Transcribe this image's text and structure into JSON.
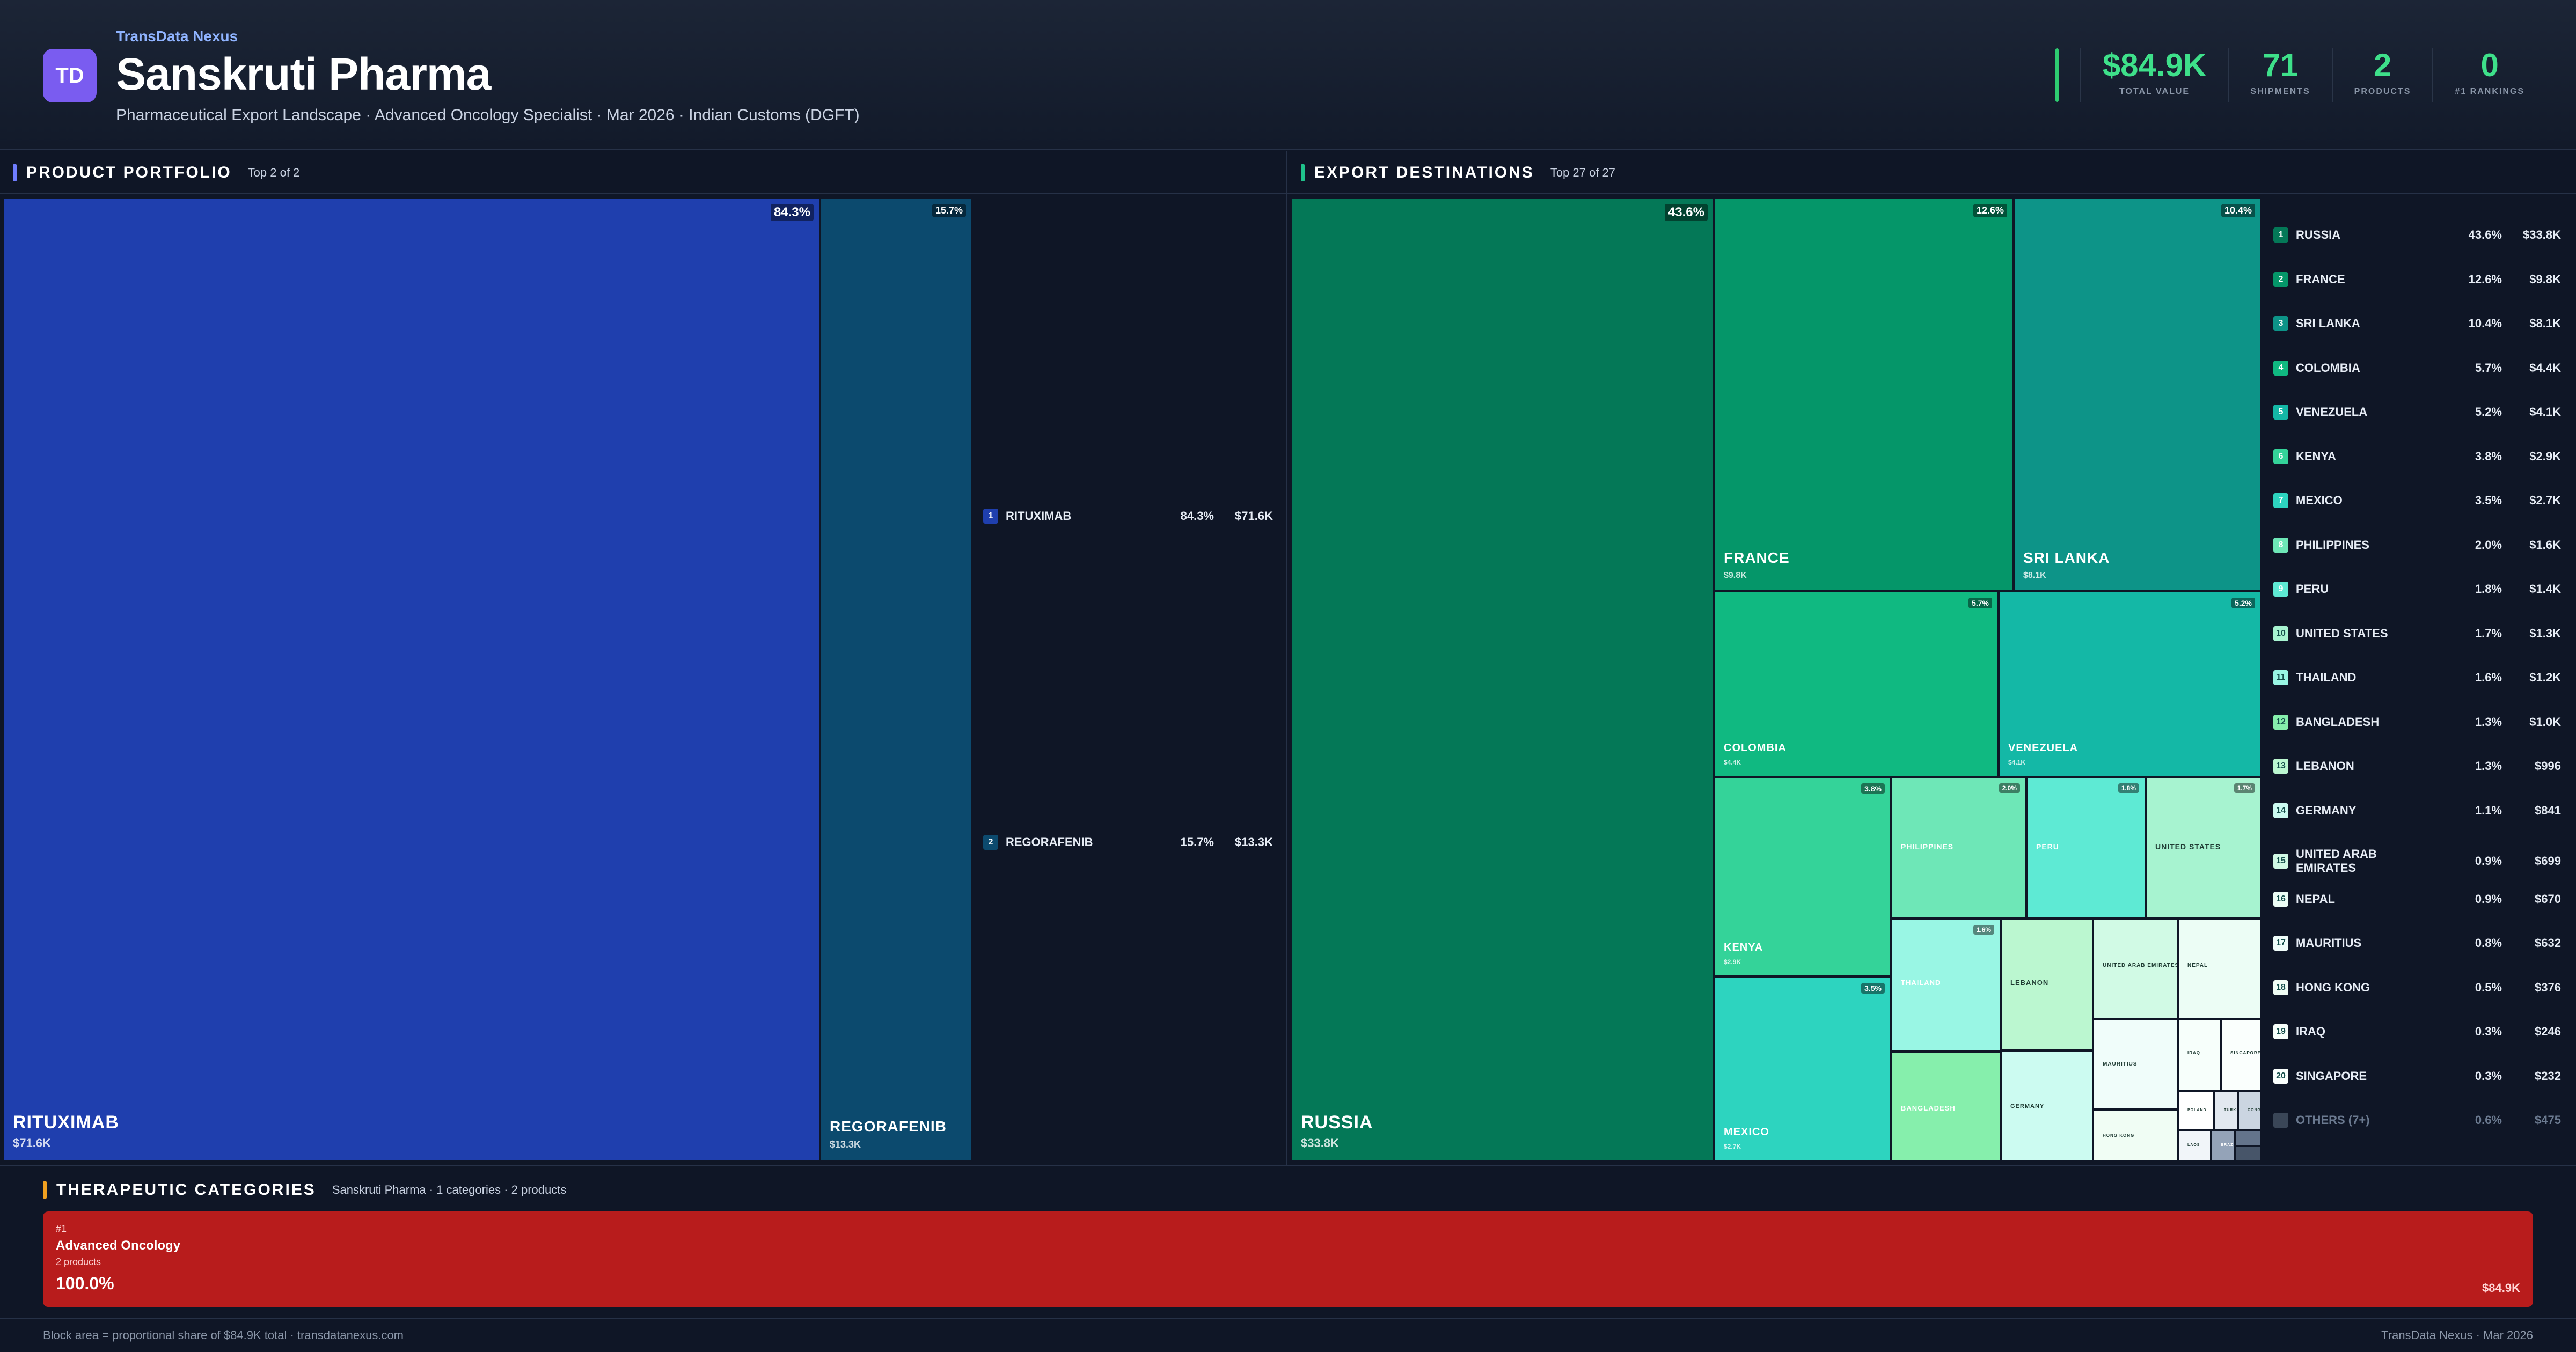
{
  "header": {
    "logo_text": "TD",
    "brand": "TransData Nexus",
    "title": "Sanskruti Pharma",
    "subtitle": "Pharmaceutical Export Landscape · Advanced Oncology Specialist · Mar 2026 · Indian Customs (DGFT)"
  },
  "kpis": [
    {
      "value": "$84.9K",
      "label": "TOTAL VALUE"
    },
    {
      "value": "71",
      "label": "SHIPMENTS"
    },
    {
      "value": "2",
      "label": "PRODUCTS"
    },
    {
      "value": "0",
      "label": "#1 RANKINGS"
    }
  ],
  "colors": {
    "accent_green": "#3ee08a",
    "product_blue": "#1f3fae",
    "product_teal": "#0c4a6e",
    "category_red": "#b81c1c"
  },
  "portfolio": {
    "title": "PRODUCT PORTFOLIO",
    "subtitle": "Top 2 of 2"
  },
  "destinations": {
    "title": "EXPORT DESTINATIONS",
    "subtitle": "Top 27 of 27"
  },
  "chart_data": [
    {
      "type": "treemap",
      "title": "PRODUCT PORTFOLIO",
      "items": [
        {
          "rank": "1",
          "name": "RITUXIMAB",
          "pct": "84.3%",
          "value_label": "$71.6K",
          "value": 71.6,
          "color": "#1f3fae"
        },
        {
          "rank": "2",
          "name": "REGORAFENIB",
          "pct": "15.7%",
          "value_label": "$13.3K",
          "value": 13.3,
          "color": "#0c4a6e"
        }
      ]
    },
    {
      "type": "treemap",
      "title": "EXPORT DESTINATIONS",
      "items": [
        {
          "rank": "1",
          "name": "RUSSIA",
          "pct": "43.6%",
          "value_label": "$33.8K",
          "value": 33800,
          "color": "#047857"
        },
        {
          "rank": "2",
          "name": "FRANCE",
          "pct": "12.6%",
          "value_label": "$9.8K",
          "value": 9800,
          "color": "#059669"
        },
        {
          "rank": "3",
          "name": "SRI LANKA",
          "pct": "10.4%",
          "value_label": "$8.1K",
          "value": 8100,
          "color": "#0d9488"
        },
        {
          "rank": "4",
          "name": "COLOMBIA",
          "pct": "5.7%",
          "value_label": "$4.4K",
          "value": 4400,
          "color": "#10b981"
        },
        {
          "rank": "5",
          "name": "VENEZUELA",
          "pct": "5.2%",
          "value_label": "$4.1K",
          "value": 4100,
          "color": "#14b8a6"
        },
        {
          "rank": "6",
          "name": "KENYA",
          "pct": "3.8%",
          "value_label": "$2.9K",
          "value": 2900,
          "color": "#34d399"
        },
        {
          "rank": "7",
          "name": "MEXICO",
          "pct": "3.5%",
          "value_label": "$2.7K",
          "value": 2700,
          "color": "#2dd4bf"
        },
        {
          "rank": "8",
          "name": "PHILIPPINES",
          "pct": "2.0%",
          "value_label": "$1.6K",
          "value": 1600,
          "color": "#6ee7b7"
        },
        {
          "rank": "9",
          "name": "PERU",
          "pct": "1.8%",
          "value_label": "$1.4K",
          "value": 1400,
          "color": "#5eead4"
        },
        {
          "rank": "10",
          "name": "UNITED STATES",
          "pct": "1.7%",
          "value_label": "$1.3K",
          "value": 1300,
          "color": "#a7f3d0"
        },
        {
          "rank": "11",
          "name": "THAILAND",
          "pct": "1.6%",
          "value_label": "$1.2K",
          "value": 1200,
          "color": "#99f6e4"
        },
        {
          "rank": "12",
          "name": "BANGLADESH",
          "pct": "1.3%",
          "value_label": "$1.0K",
          "value": 1000,
          "color": "#86efac"
        },
        {
          "rank": "13",
          "name": "LEBANON",
          "pct": "1.3%",
          "value_label": "$996",
          "value": 996,
          "color": "#bbf7d0"
        },
        {
          "rank": "14",
          "name": "GERMANY",
          "pct": "1.1%",
          "value_label": "$841",
          "value": 841,
          "color": "#ccfbf1"
        },
        {
          "rank": "15",
          "name": "UNITED ARAB EMIRATES",
          "pct": "0.9%",
          "value_label": "$699",
          "value": 699,
          "color": "#d1fae5"
        },
        {
          "rank": "16",
          "name": "NEPAL",
          "pct": "0.9%",
          "value_label": "$670",
          "value": 670,
          "color": "#ecfdf5"
        },
        {
          "rank": "17",
          "name": "MAURITIUS",
          "pct": "0.8%",
          "value_label": "$632",
          "value": 632,
          "color": "#f0fdfa"
        },
        {
          "rank": "18",
          "name": "HONG KONG",
          "pct": "0.5%",
          "value_label": "$376",
          "value": 376,
          "color": "#f0fdf4"
        },
        {
          "rank": "19",
          "name": "IRAQ",
          "pct": "0.3%",
          "value_label": "$246",
          "value": 246,
          "color": "#f7fffb"
        },
        {
          "rank": "20",
          "name": "SINGAPORE",
          "pct": "0.3%",
          "value_label": "$232",
          "value": 232,
          "color": "#fafffd"
        }
      ],
      "minor_tiles": [
        {
          "name": "POLAND",
          "color": "#ffffff"
        },
        {
          "name": "TURKEY",
          "color": "#e2e8f0"
        },
        {
          "name": "CONGO",
          "color": "#cbd5e1"
        },
        {
          "name": "LAOS",
          "color": "#f1f5f9"
        },
        {
          "name": "BRAZIL",
          "color": "#94a3b8"
        },
        {
          "name": "",
          "color": "#64748b"
        },
        {
          "name": "",
          "color": "#475569"
        }
      ],
      "others": {
        "name": "OTHERS (7+)",
        "pct": "0.6%",
        "value_label": "$475"
      }
    }
  ],
  "categories": {
    "title": "THERAPEUTIC CATEGORIES",
    "subtitle": "Sanskruti Pharma · 1 categories · 2 products",
    "items": [
      {
        "rank": "#1",
        "name": "Advanced Oncology",
        "count": "2 products",
        "pct": "100.0%",
        "value": "$84.9K"
      }
    ]
  },
  "footer": {
    "left": "Block area = proportional share of $84.9K total · transdatanexus.com",
    "right": "TransData Nexus · Mar 2026"
  }
}
